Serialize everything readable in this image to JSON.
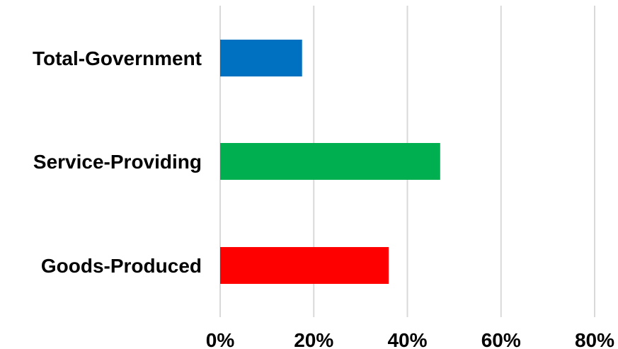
{
  "chart_data": {
    "type": "bar",
    "orientation": "horizontal",
    "title": "",
    "xlabel": "",
    "ylabel": "",
    "categories": [
      "Total-Government",
      "Service-Providing",
      "Goods-Produced"
    ],
    "values": [
      17.5,
      47,
      36
    ],
    "bar_colors": [
      "#0070c0",
      "#00b050",
      "#ff0000"
    ],
    "xlim": [
      0,
      80
    ],
    "x_ticks": [
      0,
      20,
      40,
      60,
      80
    ],
    "x_tick_labels": [
      "0%",
      "20%",
      "40%",
      "60%",
      "80%"
    ],
    "grid": "vertical",
    "grid_color": "#d9d9d9",
    "legend": "none"
  }
}
